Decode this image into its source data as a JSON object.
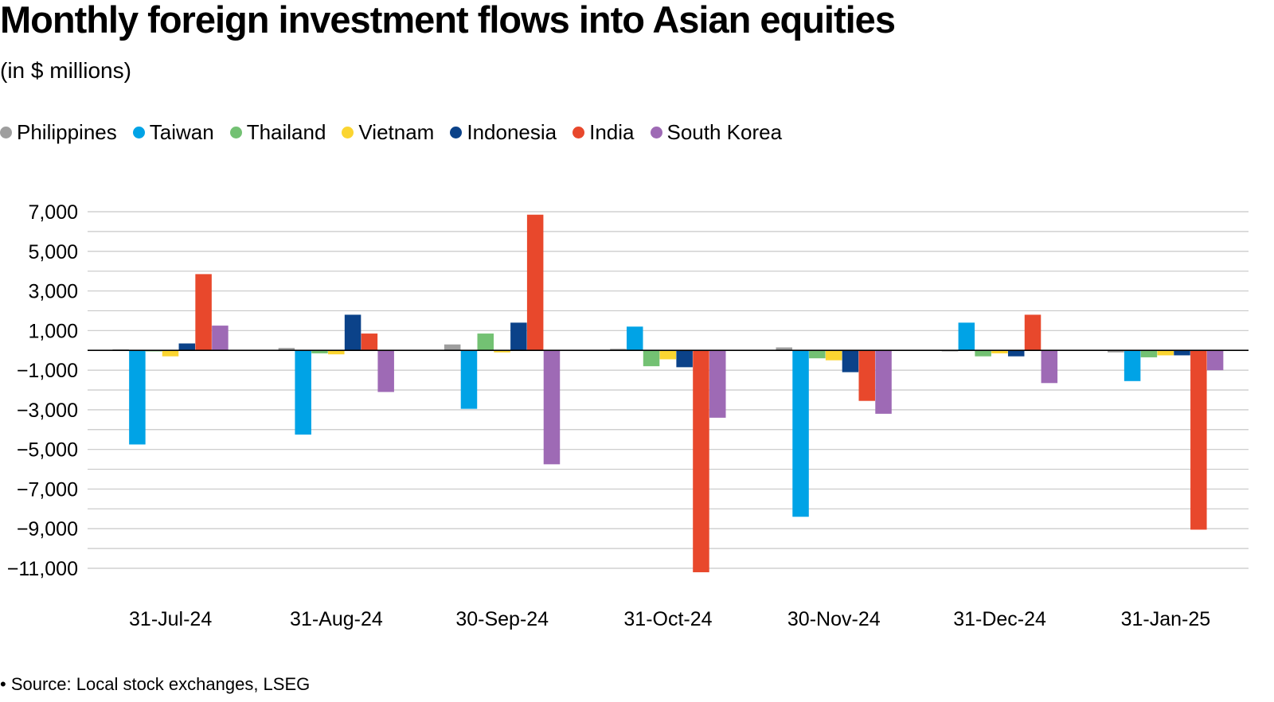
{
  "chart_data": {
    "type": "bar",
    "title": "Monthly foreign investment flows into Asian equities",
    "subtitle": "(in $ millions)",
    "xlabel": "",
    "ylabel": "",
    "ylim": [
      -11000,
      7000
    ],
    "yticks": [
      7000,
      5000,
      3000,
      1000,
      -1000,
      -3000,
      -5000,
      -7000,
      -9000,
      -11000
    ],
    "ytick_labels": [
      "7,000",
      "5,000",
      "3,000",
      "1,000",
      "−1,000",
      "−3,000",
      "−5,000",
      "−7,000",
      "−9,000",
      "−11,000"
    ],
    "categories": [
      "31-Jul-24",
      "31-Aug-24",
      "30-Sep-24",
      "31-Oct-24",
      "30-Nov-24",
      "31-Dec-24",
      "31-Jan-25"
    ],
    "legend_position": "top-left",
    "grid": true,
    "series": [
      {
        "name": "Philippines",
        "color": "#9e9e9e",
        "values": [
          50,
          120,
          300,
          80,
          150,
          -50,
          -100
        ]
      },
      {
        "name": "Taiwan",
        "color": "#00a3e6",
        "values": [
          -4750,
          -4250,
          -2950,
          1200,
          -8400,
          1400,
          -1550
        ]
      },
      {
        "name": "Thailand",
        "color": "#73c173",
        "values": [
          -50,
          -150,
          850,
          -800,
          -400,
          -300,
          -350
        ]
      },
      {
        "name": "Vietnam",
        "color": "#fbd531",
        "values": [
          -300,
          -200,
          -100,
          -450,
          -500,
          -150,
          -250
        ]
      },
      {
        "name": "Indonesia",
        "color": "#0b4289",
        "values": [
          350,
          1800,
          1400,
          -850,
          -1100,
          -300,
          -250
        ]
      },
      {
        "name": "India",
        "color": "#e8482c",
        "values": [
          3850,
          850,
          6850,
          -11200,
          -2550,
          1800,
          -9050
        ]
      },
      {
        "name": "South Korea",
        "color": "#9e6ab5",
        "values": [
          1250,
          -2100,
          -5750,
          -3400,
          -3200,
          -1650,
          -1000
        ]
      }
    ]
  },
  "source": "• Source: Local stock exchanges, LSEG"
}
